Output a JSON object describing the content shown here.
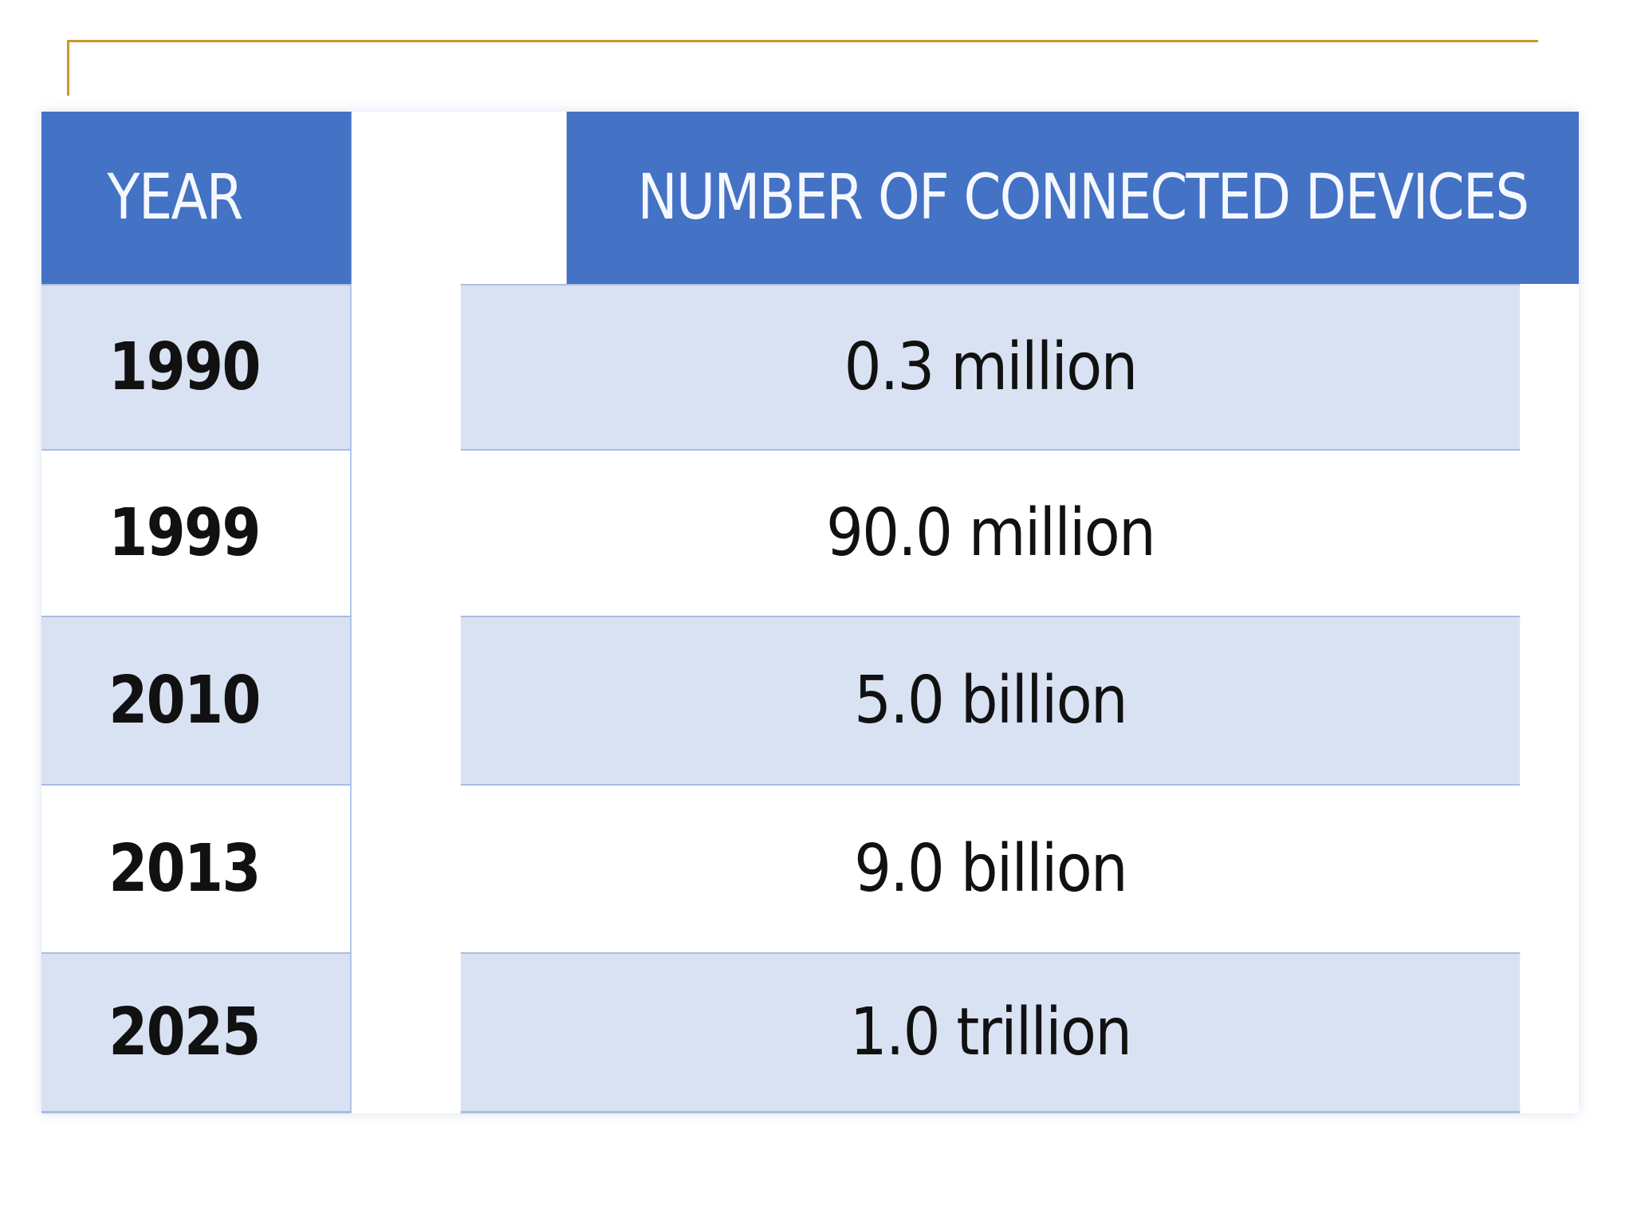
{
  "table": {
    "headers": {
      "year": "YEAR",
      "devices": "NUMBER OF CONNECTED DEVICES"
    },
    "rows": [
      {
        "year": "1990",
        "devices": "0.3 million"
      },
      {
        "year": "1999",
        "devices": "90.0 million"
      },
      {
        "year": "2010",
        "devices": "5.0 billion"
      },
      {
        "year": "2013",
        "devices": "9.0 billion"
      },
      {
        "year": "2025",
        "devices": "1.0 trillion"
      }
    ]
  },
  "colors": {
    "header_bg": "#4472c4",
    "header_text": "#f5f8ff",
    "band": "#d9e2f3",
    "grid": "#a9bde4",
    "frame_accent": "#c79a2a"
  }
}
